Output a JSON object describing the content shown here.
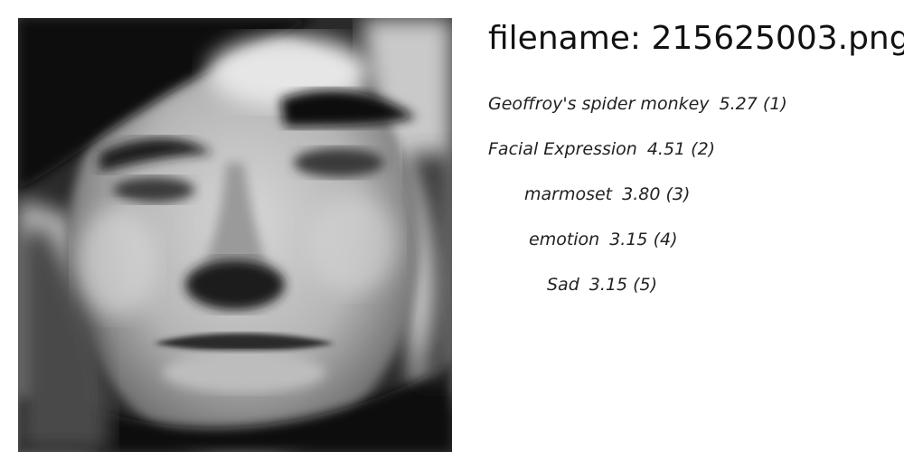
{
  "header": {
    "filename_text": "filename: 215625003.png"
  },
  "image": {
    "icon": "grayscale-face-photo"
  },
  "predictions": [
    {
      "label": "Geoffroy's spider monkey",
      "score": "5.27",
      "rank": "(1)"
    },
    {
      "label": "Facial Expression",
      "score": "4.51",
      "rank": "(2)"
    },
    {
      "label": "marmoset",
      "score": "3.80",
      "rank": "(3)"
    },
    {
      "label": "emotion",
      "score": "3.15",
      "rank": "(4)"
    },
    {
      "label": "Sad",
      "score": "3.15",
      "rank": "(5)"
    }
  ]
}
